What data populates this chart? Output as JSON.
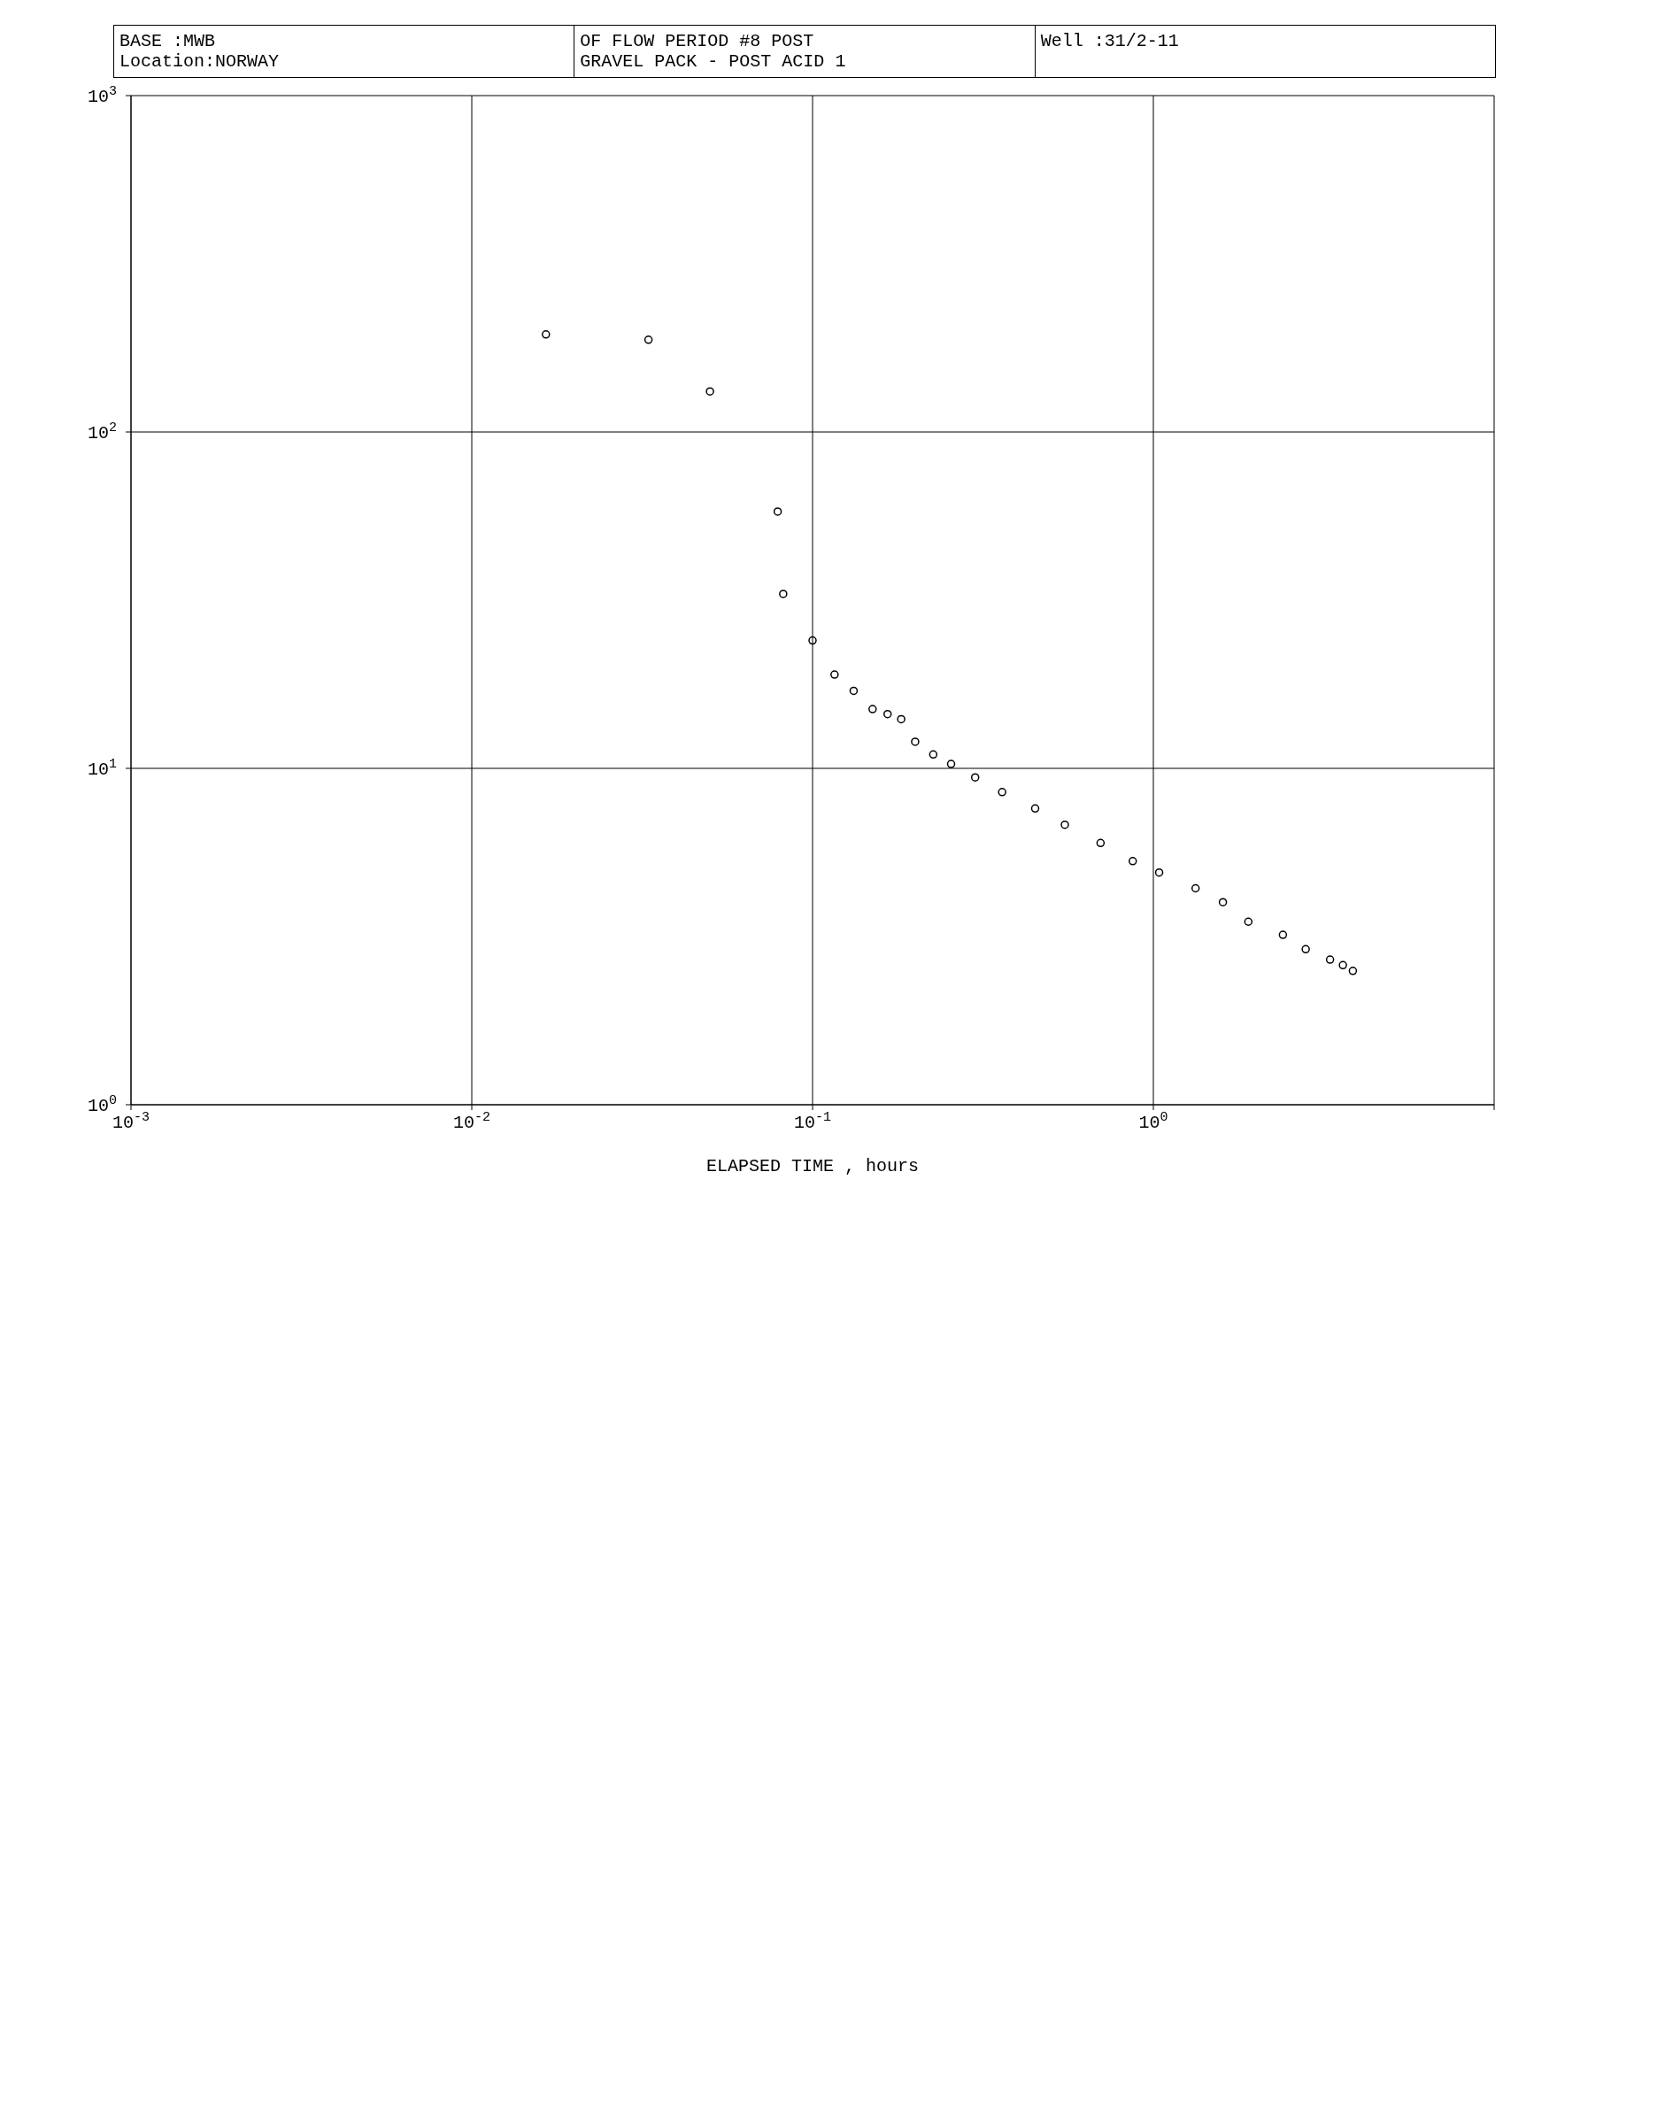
{
  "chart_data": {
    "type": "scatter",
    "title": "OF FLOW PERIOD #8 POST",
    "subtitle": "GRAVEL PACK - POST ACID 1",
    "xlabel": "ELAPSED TIME , hours",
    "annotations": [
      "BASE :MWB",
      "Location:NORWAY",
      "Well :31/2-11"
    ],
    "x": [
      0.0165,
      0.033,
      0.05,
      0.079,
      0.082,
      0.1,
      0.116,
      0.132,
      0.15,
      0.166,
      0.182,
      0.2,
      0.226,
      0.255,
      0.3,
      0.36,
      0.45,
      0.55,
      0.7,
      0.87,
      1.04,
      1.33,
      1.6,
      1.9,
      2.4,
      2.8,
      3.3,
      3.6,
      3.85
    ],
    "series": [
      {
        "color": "#000000",
        "values": [
          195,
          188,
          132,
          58,
          33,
          24,
          19,
          17,
          15,
          14.5,
          14,
          12,
          11,
          10.3,
          9.4,
          8.5,
          7.6,
          6.8,
          6,
          5.3,
          4.9,
          4.4,
          4,
          3.5,
          3.2,
          2.9,
          2.7,
          2.6,
          2.5
        ]
      }
    ],
    "log": "xy",
    "xlim": [
      0.001,
      10
    ],
    "ylim": [
      1,
      1000
    ],
    "xticks": [
      {
        "value": 0.001,
        "label": "10$^{-3}$"
      },
      {
        "value": 0.01,
        "label": "10$^{-2}$"
      },
      {
        "value": 0.1,
        "label": "10$^{-1}$"
      },
      {
        "value": 1,
        "label": "10$^{0}$"
      },
      {
        "value": 10,
        "label": null
      }
    ],
    "yticks": [
      {
        "value": 1,
        "label": "10$^{0}$"
      },
      {
        "value": 10,
        "label": "10$^{1}$"
      },
      {
        "value": 100,
        "label": "10$^{2}$"
      },
      {
        "value": 1000,
        "label": "10$^{3}$"
      }
    ],
    "grid": true,
    "marker": "circle",
    "legend": false
  }
}
